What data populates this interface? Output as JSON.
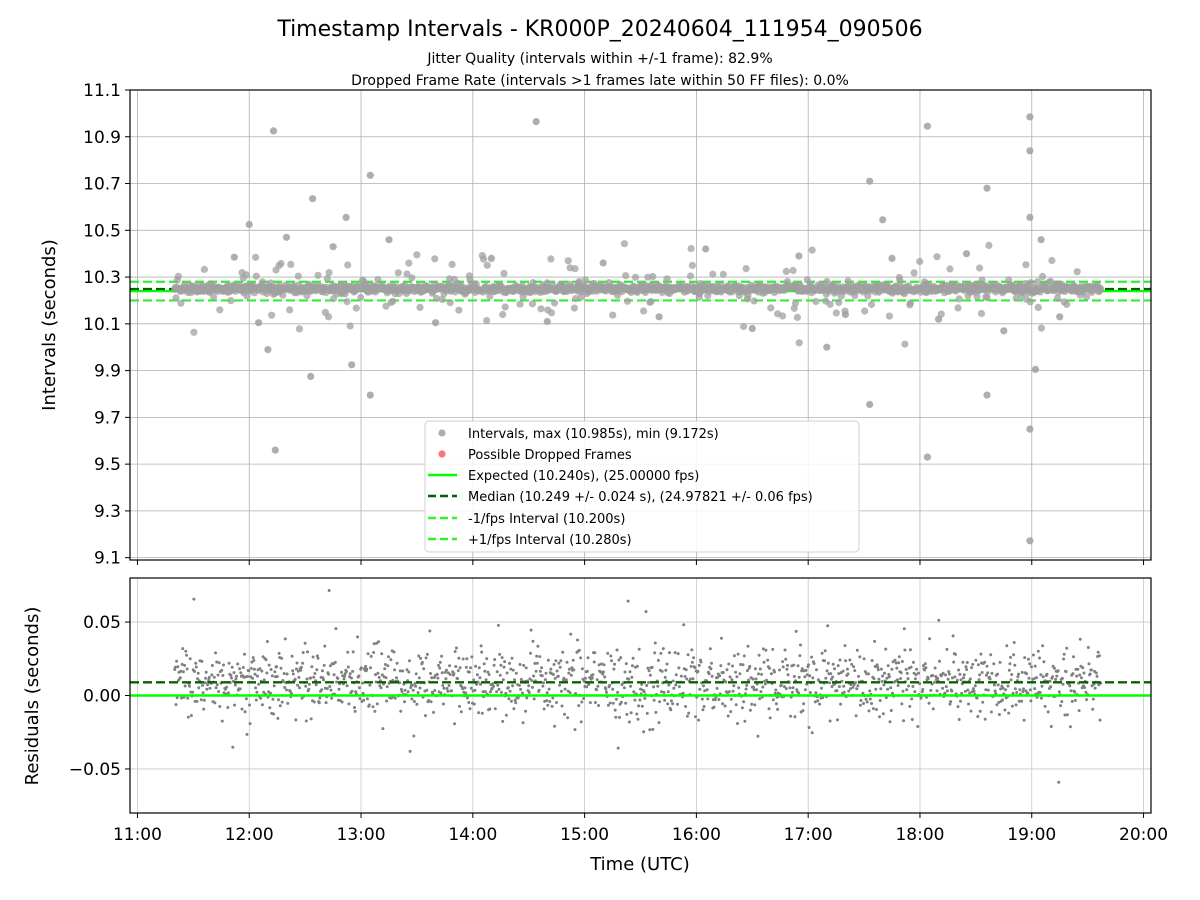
{
  "chart_data": [
    {
      "type": "scatter",
      "title": "Timestamp Intervals - KR000P_20240604_111954_090506",
      "subtitle_1": "Jitter Quality (intervals within +/-1 frame): 82.9%",
      "subtitle_2": "Dropped Frame Rate (intervals >1 frames late within 50 FF files): 0.0%",
      "xlabel": "",
      "ylabel": "Intervals (seconds)",
      "xlim": [
        "10:56",
        "20:04"
      ],
      "ylim": [
        9.09,
        11.1
      ],
      "y_ticks": [
        9.1,
        9.3,
        9.5,
        9.7,
        9.9,
        10.1,
        10.3,
        10.5,
        10.7,
        10.9,
        11.1
      ],
      "y_tick_labels": [
        "9.1",
        "9.3",
        "9.5",
        "9.7",
        "9.9",
        "10.1",
        "10.3",
        "10.5",
        "10.7",
        "10.9",
        "11.1"
      ],
      "grid": true,
      "legend_position": "lower-center",
      "legend": [
        {
          "label": "Intervals, max (10.985s), min (9.172s)",
          "style": "marker",
          "color": "#a0a0a0"
        },
        {
          "label": "Possible Dropped Frames",
          "style": "marker",
          "color": "#ff5a5a"
        },
        {
          "label": "Expected (10.240s), (25.00000 fps)",
          "style": "solid",
          "color": "#00ff00"
        },
        {
          "label": "Median (10.249 +/- 0.024 s), (24.97821 +/- 0.06 fps)",
          "style": "dashed",
          "color": "#006400"
        },
        {
          "label": "-1/fps Interval (10.200s)",
          "style": "dashed",
          "color": "#33ee33"
        },
        {
          "label": "+1/fps Interval (10.280s)",
          "style": "dashed",
          "color": "#33ee33"
        }
      ],
      "reference_lines": [
        {
          "name": "Expected",
          "y": 10.24,
          "style": "solid",
          "color": "#00ff00"
        },
        {
          "name": "Median",
          "y": 10.249,
          "style": "dashed",
          "color": "#006400"
        },
        {
          "name": "-1/fps Interval",
          "y": 10.2,
          "style": "dashed",
          "color": "#33ee33"
        },
        {
          "name": "+1/fps Interval",
          "y": 10.28,
          "style": "dashed",
          "color": "#33ee33"
        }
      ],
      "series": [
        {
          "marker_color": "#a0a0a0",
          "note_time_range": [
            "11:20",
            "19:37"
          ],
          "points": [
            [
              "12:13",
              10.925
            ],
            [
              "14:34",
              10.965
            ],
            [
              "13:05",
              10.735
            ],
            [
              "12:34",
              10.635
            ],
            [
              "17:33",
              10.71
            ],
            [
              "18:04",
              10.945
            ],
            [
              "18:59",
              10.985
            ],
            [
              "18:59",
              10.84
            ],
            [
              "18:36",
              10.68
            ],
            [
              "12:14",
              9.56
            ],
            [
              "12:33",
              9.875
            ],
            [
              "12:55",
              9.925
            ],
            [
              "13:05",
              9.795
            ],
            [
              "17:33",
              9.755
            ],
            [
              "18:04",
              9.53
            ],
            [
              "18:36",
              9.795
            ],
            [
              "18:59",
              9.65
            ],
            [
              "18:59",
              9.172
            ],
            [
              "19:02",
              9.905
            ],
            [
              "12:00",
              10.525
            ],
            [
              "12:52",
              10.555
            ],
            [
              "17:40",
              10.545
            ],
            [
              "18:59",
              10.555
            ],
            [
              "12:10",
              9.99
            ],
            [
              "12:05",
              10.105
            ],
            [
              "11:52",
              10.385
            ],
            [
              "12:20",
              10.47
            ],
            [
              "12:45",
              10.43
            ],
            [
              "13:15",
              10.46
            ],
            [
              "13:40",
              10.105
            ],
            [
              "14:10",
              10.38
            ],
            [
              "14:40",
              10.11
            ],
            [
              "15:10",
              10.36
            ],
            [
              "15:40",
              10.13
            ],
            [
              "16:05",
              10.42
            ],
            [
              "16:30",
              10.08
            ],
            [
              "16:55",
              10.39
            ],
            [
              "17:10",
              10.0
            ],
            [
              "17:20",
              10.14
            ],
            [
              "17:45",
              10.38
            ],
            [
              "18:10",
              10.12
            ],
            [
              "18:25",
              10.4
            ],
            [
              "18:45",
              10.07
            ],
            [
              "19:05",
              10.46
            ],
            [
              "19:15",
              10.13
            ]
          ]
        }
      ]
    },
    {
      "type": "scatter",
      "title": "",
      "xlabel": "Time (UTC)",
      "ylabel": "Residuals (seconds)",
      "xlim": [
        "10:56",
        "20:04"
      ],
      "ylim": [
        -0.08,
        0.08
      ],
      "x_ticks": [
        "11:00",
        "12:00",
        "13:00",
        "14:00",
        "15:00",
        "16:00",
        "17:00",
        "18:00",
        "19:00",
        "20:00"
      ],
      "y_ticks": [
        -0.05,
        0.0,
        0.05
      ],
      "y_tick_labels": [
        "−0.05",
        "0.00",
        "0.05"
      ],
      "grid": true,
      "reference_lines": [
        {
          "name": "Expected",
          "y": 0.0,
          "style": "solid",
          "color": "#00ff00"
        },
        {
          "name": "Median",
          "y": 0.009,
          "style": "dashed",
          "color": "#006400"
        }
      ],
      "series": [
        {
          "marker_color": "#808080",
          "note_time_range": [
            "11:20",
            "19:37"
          ],
          "distribution": {
            "center": 0.009,
            "spread": 0.016,
            "approx_point_count": 1500
          }
        }
      ]
    }
  ]
}
